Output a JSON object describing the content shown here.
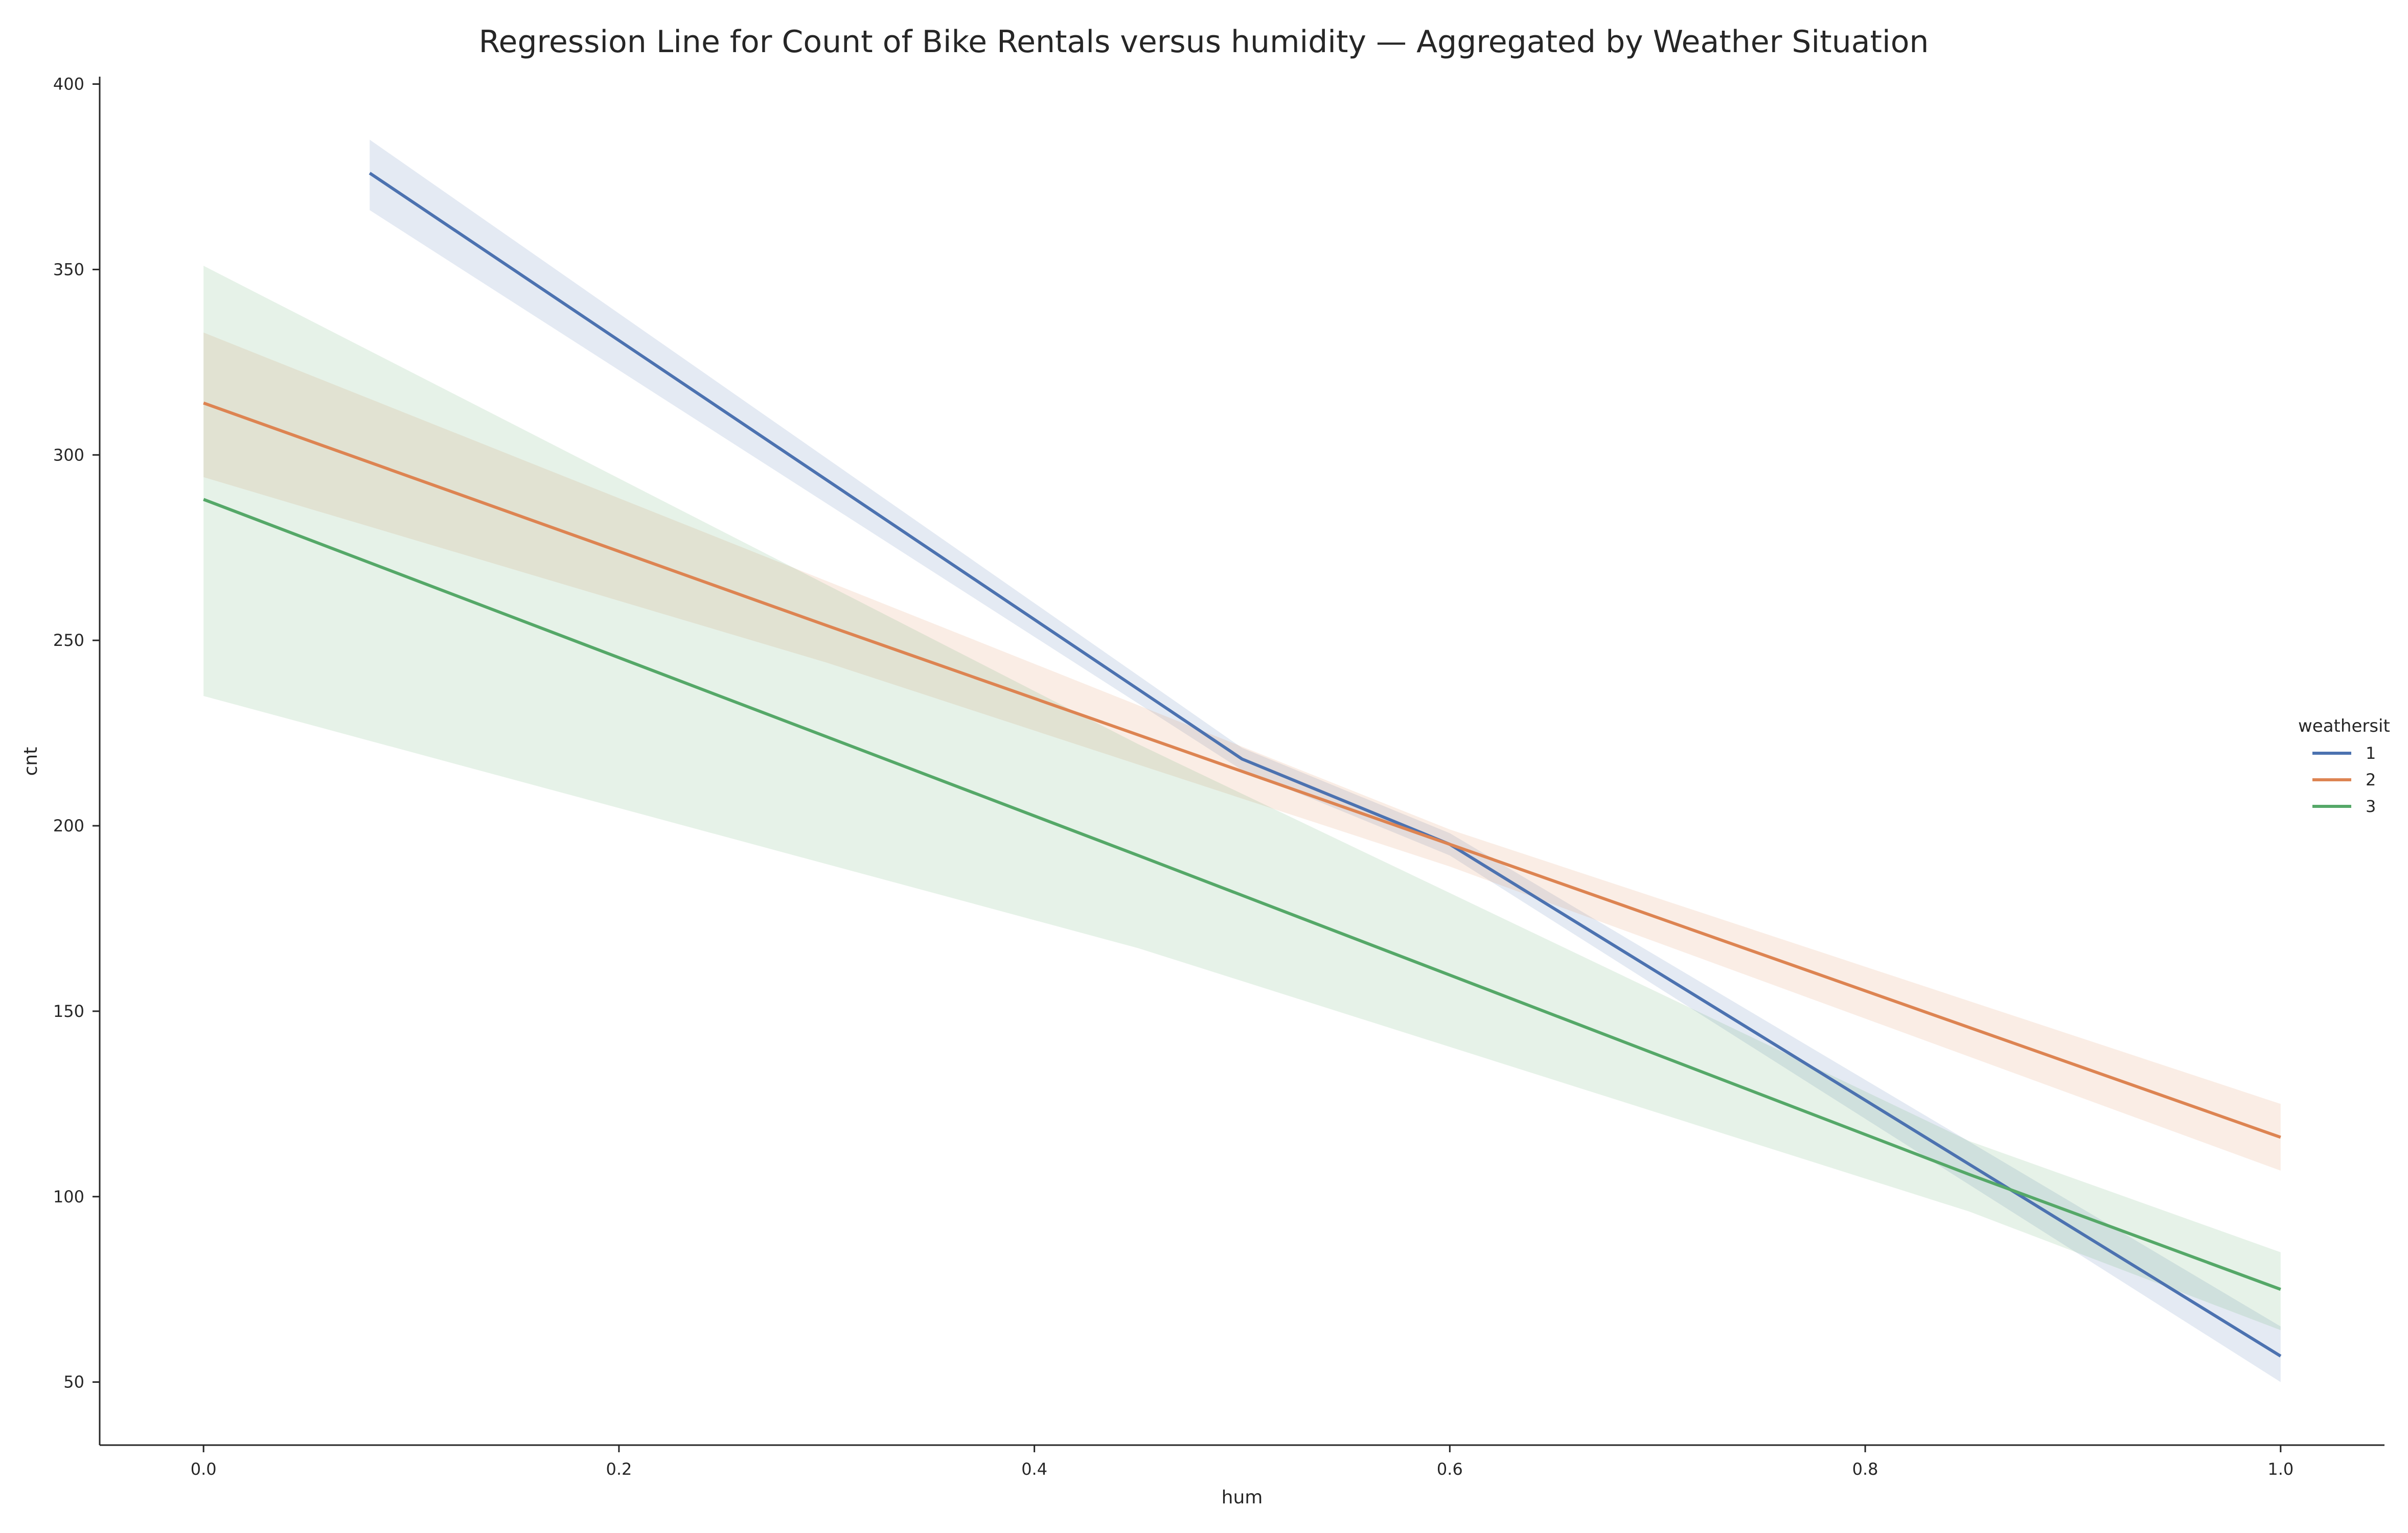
{
  "chart_data": {
    "type": "line",
    "title": "Regression Line for Count of Bike Rentals versus humidity — Aggregated by Weather Situation",
    "xlabel": "hum",
    "ylabel": "cnt",
    "xlim": [
      -0.05,
      1.05
    ],
    "ylim": [
      33,
      402
    ],
    "xticks": [
      0.0,
      0.2,
      0.4,
      0.6,
      0.8,
      1.0
    ],
    "xtick_labels": [
      "0.0",
      "0.2",
      "0.4",
      "0.6",
      "0.8",
      "1.0"
    ],
    "yticks": [
      50,
      100,
      150,
      200,
      250,
      300,
      350,
      400
    ],
    "ytick_labels": [
      "50",
      "100",
      "150",
      "200",
      "250",
      "300",
      "350",
      "400"
    ],
    "grid": false,
    "legend": {
      "title": "weathersit",
      "placement": "right"
    },
    "series": [
      {
        "name": "1",
        "color": "#4c72b0",
        "x": [
          0.08,
          0.5,
          0.6,
          1.0
        ],
        "y": [
          376,
          218,
          195,
          57
        ],
        "ci_upper": [
          385,
          221,
          198,
          65
        ],
        "ci_lower": [
          366,
          215,
          192,
          50
        ]
      },
      {
        "name": "2",
        "color": "#dd8452",
        "x": [
          0.0,
          0.3,
          0.6,
          1.0
        ],
        "y": [
          314,
          254,
          195,
          116
        ],
        "ci_upper": [
          333,
          266,
          199,
          125
        ],
        "ci_lower": [
          294,
          244,
          189,
          107
        ]
      },
      {
        "name": "3",
        "color": "#55a868",
        "x": [
          0.0,
          0.45,
          0.85,
          1.0
        ],
        "y": [
          288,
          192,
          106,
          75
        ],
        "ci_upper": [
          351,
          222,
          115,
          85
        ],
        "ci_lower": [
          235,
          167,
          96,
          64
        ]
      }
    ]
  }
}
